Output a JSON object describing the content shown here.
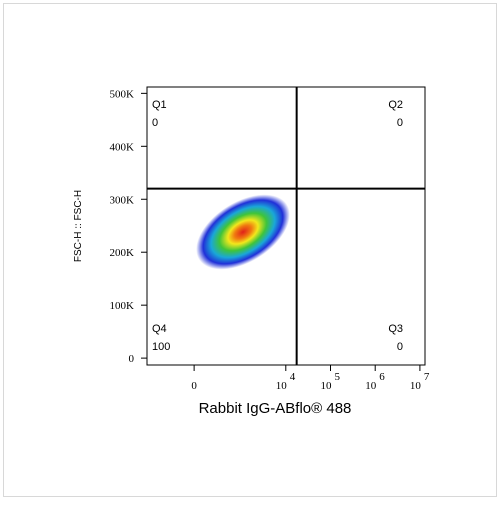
{
  "chart_data": {
    "type": "density",
    "x_label": "Rabbit IgG-ABflo® 488",
    "y_label": "FSC-H :: FSC-H",
    "x_scale": "biexponential",
    "xlim": [
      -1000,
      13000000
    ],
    "xticks": [
      0,
      {
        "value": 10000,
        "label": "10",
        "power": "4"
      },
      {
        "value": 100000,
        "label": "10",
        "power": "5"
      },
      {
        "value": 1000000,
        "label": "10",
        "power": "6"
      },
      {
        "value": 10000000,
        "label": "10",
        "power": "7"
      }
    ],
    "ylim": [
      -13000,
      512000
    ],
    "yticks": [
      0,
      {
        "value": 100000,
        "label": "100K"
      },
      {
        "value": 200000,
        "label": "200K"
      },
      {
        "value": 300000,
        "label": "300K"
      },
      {
        "value": 400000,
        "label": "400K"
      },
      {
        "value": 500000,
        "label": "500K"
      }
    ],
    "gate": {
      "x": 17500,
      "y": 320000
    },
    "quadrants": [
      {
        "name": "Q1",
        "value": 0,
        "corner": "top-left"
      },
      {
        "name": "Q2",
        "value": 0,
        "corner": "top-right"
      },
      {
        "name": "Q3",
        "value": 0,
        "corner": "bottom-right"
      },
      {
        "name": "Q4",
        "value": 100,
        "corner": "bottom-left"
      }
    ]
  }
}
